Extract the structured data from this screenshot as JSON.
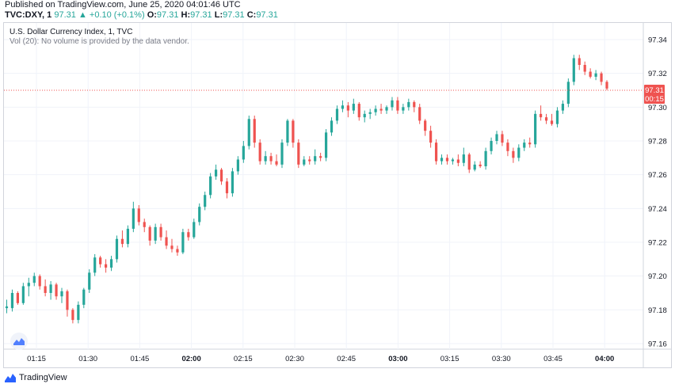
{
  "header": {
    "published": "Published on TradingView.com, June 25, 2020 04:01:46 UTC",
    "symbol": "TVC:DXY, 1",
    "last": "97.31",
    "arrow": "▲",
    "change": "+0.10 (+0.1%)",
    "o_label": "O:",
    "o_value": "97.31",
    "h_label": "H:",
    "h_value": "97.31",
    "l_label": "L:",
    "l_value": "97.31",
    "c_label": "C:",
    "c_value": "97.31"
  },
  "legend": {
    "title": "U.S. Dollar Currency Index, 1, TVC",
    "volume_note": "Vol (20): No volume is provided by the data vendor."
  },
  "price_badge": {
    "value": "97.31",
    "countdown": "00:15"
  },
  "footer": {
    "brand": "TradingView",
    "icon": "tradingview-logo-icon"
  },
  "colors": {
    "up": "#26a69a",
    "down": "#ef5350",
    "grid": "#f0f3fa",
    "axis_text": "#131722",
    "price_line": "#ef5350"
  },
  "chart_data": {
    "type": "candlestick",
    "title": "U.S. Dollar Currency Index, 1, TVC",
    "xlabel": "",
    "ylabel": "",
    "x_ticks": [
      "01:15",
      "01:30",
      "01:45",
      "02:00",
      "02:15",
      "02:30",
      "02:45",
      "03:00",
      "03:15",
      "03:30",
      "03:45",
      "04:00"
    ],
    "x_ticks_bold": [
      "02:00",
      "03:00",
      "04:00"
    ],
    "y_ticks": [
      97.16,
      97.18,
      97.2,
      97.22,
      97.24,
      97.26,
      97.28,
      97.3,
      97.32,
      97.34
    ],
    "ylim": [
      97.155,
      97.345
    ],
    "grid": true,
    "last_price": 97.31,
    "candles": [
      {
        "o": 97.181,
        "h": 97.186,
        "l": 97.178,
        "c": 97.182
      },
      {
        "o": 97.181,
        "h": 97.192,
        "l": 97.179,
        "c": 97.19
      },
      {
        "o": 97.19,
        "h": 97.191,
        "l": 97.183,
        "c": 97.184
      },
      {
        "o": 97.184,
        "h": 97.196,
        "l": 97.183,
        "c": 97.194
      },
      {
        "o": 97.194,
        "h": 97.199,
        "l": 97.188,
        "c": 97.196
      },
      {
        "o": 97.196,
        "h": 97.202,
        "l": 97.194,
        "c": 97.2
      },
      {
        "o": 97.2,
        "h": 97.201,
        "l": 97.192,
        "c": 97.194
      },
      {
        "o": 97.194,
        "h": 97.198,
        "l": 97.188,
        "c": 97.19
      },
      {
        "o": 97.19,
        "h": 97.197,
        "l": 97.186,
        "c": 97.195
      },
      {
        "o": 97.195,
        "h": 97.196,
        "l": 97.186,
        "c": 97.188
      },
      {
        "o": 97.188,
        "h": 97.193,
        "l": 97.184,
        "c": 97.191
      },
      {
        "o": 97.191,
        "h": 97.192,
        "l": 97.176,
        "c": 97.18
      },
      {
        "o": 97.18,
        "h": 97.181,
        "l": 97.172,
        "c": 97.174
      },
      {
        "o": 97.174,
        "h": 97.185,
        "l": 97.172,
        "c": 97.183
      },
      {
        "o": 97.183,
        "h": 97.193,
        "l": 97.181,
        "c": 97.192
      },
      {
        "o": 97.192,
        "h": 97.204,
        "l": 97.19,
        "c": 97.202
      },
      {
        "o": 97.202,
        "h": 97.213,
        "l": 97.2,
        "c": 97.211
      },
      {
        "o": 97.211,
        "h": 97.212,
        "l": 97.205,
        "c": 97.207
      },
      {
        "o": 97.207,
        "h": 97.21,
        "l": 97.202,
        "c": 97.205
      },
      {
        "o": 97.205,
        "h": 97.212,
        "l": 97.203,
        "c": 97.21
      },
      {
        "o": 97.21,
        "h": 97.224,
        "l": 97.208,
        "c": 97.222
      },
      {
        "o": 97.222,
        "h": 97.227,
        "l": 97.217,
        "c": 97.219
      },
      {
        "o": 97.219,
        "h": 97.23,
        "l": 97.217,
        "c": 97.228
      },
      {
        "o": 97.228,
        "h": 97.244,
        "l": 97.226,
        "c": 97.24
      },
      {
        "o": 97.24,
        "h": 97.242,
        "l": 97.23,
        "c": 97.232
      },
      {
        "o": 97.232,
        "h": 97.234,
        "l": 97.226,
        "c": 97.229
      },
      {
        "o": 97.229,
        "h": 97.23,
        "l": 97.218,
        "c": 97.221
      },
      {
        "o": 97.221,
        "h": 97.231,
        "l": 97.219,
        "c": 97.229
      },
      {
        "o": 97.229,
        "h": 97.231,
        "l": 97.221,
        "c": 97.223
      },
      {
        "o": 97.223,
        "h": 97.227,
        "l": 97.216,
        "c": 97.218
      },
      {
        "o": 97.218,
        "h": 97.222,
        "l": 97.214,
        "c": 97.216
      },
      {
        "o": 97.216,
        "h": 97.218,
        "l": 97.212,
        "c": 97.214
      },
      {
        "o": 97.214,
        "h": 97.228,
        "l": 97.213,
        "c": 97.226
      },
      {
        "o": 97.226,
        "h": 97.228,
        "l": 97.221,
        "c": 97.223
      },
      {
        "o": 97.223,
        "h": 97.234,
        "l": 97.222,
        "c": 97.232
      },
      {
        "o": 97.232,
        "h": 97.243,
        "l": 97.23,
        "c": 97.241
      },
      {
        "o": 97.241,
        "h": 97.25,
        "l": 97.239,
        "c": 97.248
      },
      {
        "o": 97.248,
        "h": 97.261,
        "l": 97.246,
        "c": 97.259
      },
      {
        "o": 97.259,
        "h": 97.266,
        "l": 97.257,
        "c": 97.263
      },
      {
        "o": 97.263,
        "h": 97.264,
        "l": 97.254,
        "c": 97.256
      },
      {
        "o": 97.256,
        "h": 97.258,
        "l": 97.246,
        "c": 97.249
      },
      {
        "o": 97.249,
        "h": 97.264,
        "l": 97.247,
        "c": 97.262
      },
      {
        "o": 97.262,
        "h": 97.271,
        "l": 97.26,
        "c": 97.269
      },
      {
        "o": 97.269,
        "h": 97.28,
        "l": 97.267,
        "c": 97.277
      },
      {
        "o": 97.277,
        "h": 97.295,
        "l": 97.275,
        "c": 97.293
      },
      {
        "o": 97.293,
        "h": 97.295,
        "l": 97.276,
        "c": 97.279
      },
      {
        "o": 97.279,
        "h": 97.281,
        "l": 97.266,
        "c": 97.268
      },
      {
        "o": 97.268,
        "h": 97.274,
        "l": 97.266,
        "c": 97.271
      },
      {
        "o": 97.271,
        "h": 97.273,
        "l": 97.266,
        "c": 97.268
      },
      {
        "o": 97.268,
        "h": 97.272,
        "l": 97.265,
        "c": 97.266
      },
      {
        "o": 97.266,
        "h": 97.281,
        "l": 97.264,
        "c": 97.279
      },
      {
        "o": 97.279,
        "h": 97.293,
        "l": 97.277,
        "c": 97.292
      },
      {
        "o": 97.292,
        "h": 97.293,
        "l": 97.276,
        "c": 97.279
      },
      {
        "o": 97.279,
        "h": 97.281,
        "l": 97.264,
        "c": 97.266
      },
      {
        "o": 97.266,
        "h": 97.271,
        "l": 97.265,
        "c": 97.269
      },
      {
        "o": 97.269,
        "h": 97.271,
        "l": 97.266,
        "c": 97.268
      },
      {
        "o": 97.268,
        "h": 97.275,
        "l": 97.266,
        "c": 97.271
      },
      {
        "o": 97.271,
        "h": 97.273,
        "l": 97.268,
        "c": 97.27
      },
      {
        "o": 97.27,
        "h": 97.287,
        "l": 97.268,
        "c": 97.285
      },
      {
        "o": 97.285,
        "h": 97.294,
        "l": 97.283,
        "c": 97.292
      },
      {
        "o": 97.292,
        "h": 97.301,
        "l": 97.29,
        "c": 97.299
      },
      {
        "o": 97.299,
        "h": 97.304,
        "l": 97.297,
        "c": 97.301
      },
      {
        "o": 97.301,
        "h": 97.303,
        "l": 97.294,
        "c": 97.298
      },
      {
        "o": 97.298,
        "h": 97.305,
        "l": 97.296,
        "c": 97.302
      },
      {
        "o": 97.302,
        "h": 97.303,
        "l": 97.292,
        "c": 97.294
      },
      {
        "o": 97.294,
        "h": 97.298,
        "l": 97.291,
        "c": 97.296
      },
      {
        "o": 97.296,
        "h": 97.299,
        "l": 97.293,
        "c": 97.297
      },
      {
        "o": 97.297,
        "h": 97.301,
        "l": 97.295,
        "c": 97.299
      },
      {
        "o": 97.299,
        "h": 97.302,
        "l": 97.296,
        "c": 97.298
      },
      {
        "o": 97.298,
        "h": 97.301,
        "l": 97.296,
        "c": 97.3
      },
      {
        "o": 97.3,
        "h": 97.306,
        "l": 97.298,
        "c": 97.304
      },
      {
        "o": 97.304,
        "h": 97.306,
        "l": 97.296,
        "c": 97.298
      },
      {
        "o": 97.298,
        "h": 97.302,
        "l": 97.296,
        "c": 97.3
      },
      {
        "o": 97.3,
        "h": 97.305,
        "l": 97.298,
        "c": 97.303
      },
      {
        "o": 97.303,
        "h": 97.304,
        "l": 97.297,
        "c": 97.3
      },
      {
        "o": 97.3,
        "h": 97.302,
        "l": 97.29,
        "c": 97.292
      },
      {
        "o": 97.292,
        "h": 97.293,
        "l": 97.283,
        "c": 97.286
      },
      {
        "o": 97.286,
        "h": 97.289,
        "l": 97.276,
        "c": 97.279
      },
      {
        "o": 97.279,
        "h": 97.281,
        "l": 97.266,
        "c": 97.268
      },
      {
        "o": 97.268,
        "h": 97.272,
        "l": 97.266,
        "c": 97.27
      },
      {
        "o": 97.27,
        "h": 97.272,
        "l": 97.266,
        "c": 97.268
      },
      {
        "o": 97.268,
        "h": 97.27,
        "l": 97.266,
        "c": 97.269
      },
      {
        "o": 97.269,
        "h": 97.272,
        "l": 97.265,
        "c": 97.267
      },
      {
        "o": 97.267,
        "h": 97.276,
        "l": 97.265,
        "c": 97.272
      },
      {
        "o": 97.272,
        "h": 97.273,
        "l": 97.261,
        "c": 97.263
      },
      {
        "o": 97.263,
        "h": 97.268,
        "l": 97.262,
        "c": 97.266
      },
      {
        "o": 97.266,
        "h": 97.268,
        "l": 97.264,
        "c": 97.265
      },
      {
        "o": 97.265,
        "h": 97.276,
        "l": 97.263,
        "c": 97.274
      },
      {
        "o": 97.274,
        "h": 97.282,
        "l": 97.272,
        "c": 97.28
      },
      {
        "o": 97.28,
        "h": 97.286,
        "l": 97.278,
        "c": 97.284
      },
      {
        "o": 97.284,
        "h": 97.286,
        "l": 97.277,
        "c": 97.279
      },
      {
        "o": 97.279,
        "h": 97.281,
        "l": 97.271,
        "c": 97.274
      },
      {
        "o": 97.274,
        "h": 97.276,
        "l": 97.267,
        "c": 97.27
      },
      {
        "o": 97.27,
        "h": 97.278,
        "l": 97.268,
        "c": 97.276
      },
      {
        "o": 97.276,
        "h": 97.281,
        "l": 97.274,
        "c": 97.279
      },
      {
        "o": 97.279,
        "h": 97.282,
        "l": 97.276,
        "c": 97.278
      },
      {
        "o": 97.278,
        "h": 97.298,
        "l": 97.276,
        "c": 97.296
      },
      {
        "o": 97.296,
        "h": 97.301,
        "l": 97.292,
        "c": 97.294
      },
      {
        "o": 97.294,
        "h": 97.296,
        "l": 97.29,
        "c": 97.292
      },
      {
        "o": 97.292,
        "h": 97.296,
        "l": 97.289,
        "c": 97.29
      },
      {
        "o": 97.29,
        "h": 97.3,
        "l": 97.288,
        "c": 97.298
      },
      {
        "o": 97.298,
        "h": 97.304,
        "l": 97.296,
        "c": 97.302
      },
      {
        "o": 97.302,
        "h": 97.317,
        "l": 97.3,
        "c": 97.315
      },
      {
        "o": 97.315,
        "h": 97.331,
        "l": 97.313,
        "c": 97.329
      },
      {
        "o": 97.329,
        "h": 97.331,
        "l": 97.322,
        "c": 97.325
      },
      {
        "o": 97.325,
        "h": 97.327,
        "l": 97.319,
        "c": 97.321
      },
      {
        "o": 97.321,
        "h": 97.323,
        "l": 97.317,
        "c": 97.318
      },
      {
        "o": 97.318,
        "h": 97.322,
        "l": 97.316,
        "c": 97.32
      },
      {
        "o": 97.32,
        "h": 97.321,
        "l": 97.313,
        "c": 97.315
      },
      {
        "o": 97.315,
        "h": 97.316,
        "l": 97.31,
        "c": 97.311
      }
    ]
  }
}
